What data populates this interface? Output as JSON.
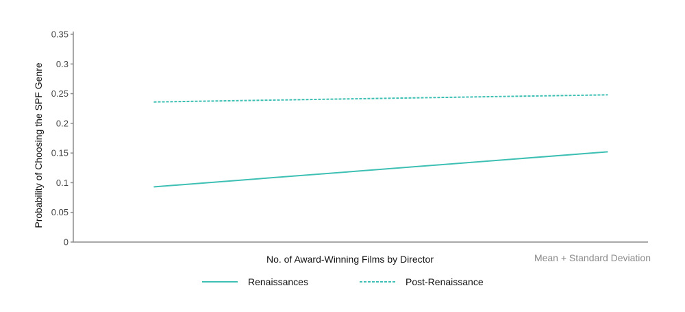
{
  "chart_data": {
    "type": "line",
    "xlabel": "No. of Award-Winning Films by Director",
    "ylabel": "Probability of Choosing the SPF Genre",
    "x_note": "Mean + Standard Deviation",
    "ylim": [
      0,
      0.35
    ],
    "yticks": [
      {
        "value": 0,
        "label": "0"
      },
      {
        "value": 0.05,
        "label": "0.05"
      },
      {
        "value": 0.1,
        "label": "0.1"
      },
      {
        "value": 0.15,
        "label": "0.15"
      },
      {
        "value": 0.2,
        "label": "0.2"
      },
      {
        "value": 0.25,
        "label": "0.25"
      },
      {
        "value": 0.3,
        "label": "0.3"
      },
      {
        "value": 0.35,
        "label": "0.35"
      }
    ],
    "xlim": [
      0,
      1
    ],
    "grid": false,
    "legend_position": "bottom",
    "series": [
      {
        "name": "Renaissances",
        "style": "solid",
        "color": "#3dbfb3",
        "x": [
          0.14,
          0.93
        ],
        "values": [
          0.093,
          0.152
        ]
      },
      {
        "name": "Post-Renaissance",
        "style": "dashed",
        "color": "#3dbfb3",
        "x": [
          0.14,
          0.93
        ],
        "values": [
          0.236,
          0.248
        ]
      }
    ]
  }
}
